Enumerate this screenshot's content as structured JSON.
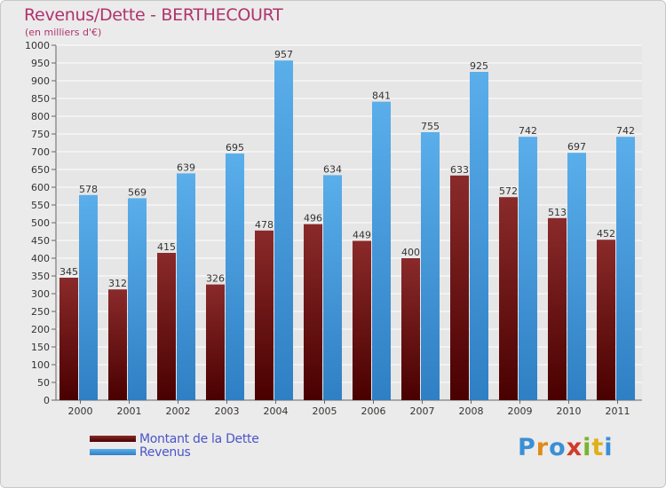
{
  "header": {
    "title": "Revenus/Dette - BERTHECOURT",
    "subtitle": "(en milliers d'€)"
  },
  "brand": {
    "logo_text": "Proxiti"
  },
  "colors": {
    "title": "#b0336c",
    "debt": "#6e1414",
    "revenue": "#4a9fe0",
    "axis_text": "#333333",
    "grid": "#ffffff",
    "legend_text": "#4a55c9"
  },
  "chart_data": {
    "type": "bar",
    "title": "Revenus/Dette - BERTHECOURT",
    "subtitle": "(en milliers d'€)",
    "categories": [
      "2000",
      "2001",
      "2002",
      "2003",
      "2004",
      "2005",
      "2006",
      "2007",
      "2008",
      "2009",
      "2010",
      "2011"
    ],
    "series": [
      {
        "name": "Montant de la Dette",
        "values": [
          345,
          312,
          415,
          326,
          478,
          496,
          449,
          400,
          633,
          572,
          513,
          452
        ]
      },
      {
        "name": "Revenus",
        "values": [
          578,
          569,
          639,
          695,
          957,
          634,
          841,
          755,
          925,
          742,
          697,
          742
        ]
      }
    ],
    "ylim": [
      0,
      1000
    ],
    "ytick_step": 50,
    "grid": true,
    "data_labels": true,
    "legend_position": "bottom-left"
  }
}
